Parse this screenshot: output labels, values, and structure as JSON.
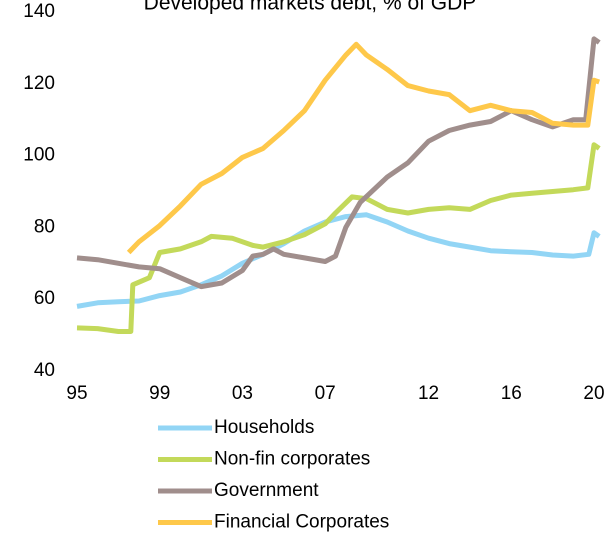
{
  "chart_data": {
    "type": "line",
    "title": "Developed markets debt, % of GDP",
    "xlim": [
      1995,
      2020.25
    ],
    "xticks": [
      {
        "value": 1995,
        "label": "95"
      },
      {
        "value": 1999,
        "label": "99"
      },
      {
        "value": 2003,
        "label": "03"
      },
      {
        "value": 2007,
        "label": "07"
      },
      {
        "value": 2012,
        "label": "12"
      },
      {
        "value": 2016,
        "label": "16"
      },
      {
        "value": 2020,
        "label": "20"
      }
    ],
    "ylim": [
      40,
      140
    ],
    "yticks": [
      40,
      60,
      80,
      100,
      120,
      140
    ],
    "grid": false,
    "series": [
      {
        "name": "Households",
        "color": "#92d5f5",
        "x": [
          1995,
          1996,
          1997,
          1998,
          1999,
          2000,
          2001,
          2002,
          2003,
          2004,
          2005,
          2006,
          2007,
          2008,
          2009,
          2010,
          2011,
          2012,
          2013,
          2014,
          2015,
          2016,
          2017,
          2018,
          2019,
          2019.75,
          2020,
          2020.25
        ],
        "values": [
          58,
          59,
          59.3,
          59.5,
          61,
          62,
          64,
          66.5,
          70,
          72.5,
          75.5,
          79,
          81.5,
          83,
          83.5,
          81.5,
          79,
          77,
          75.5,
          74.5,
          73.5,
          73.2,
          73,
          72.3,
          72,
          72.5,
          78.5,
          77.5
        ]
      },
      {
        "name": "Non-fin corporates",
        "color": "#c3d95a",
        "x": [
          1995,
          1996,
          1997,
          1997.6,
          1997.7,
          1998.5,
          1999,
          2000,
          2001,
          2001.5,
          2002.5,
          2003.5,
          2004,
          2005,
          2006,
          2007,
          2007.5,
          2008.3,
          2009,
          2010,
          2011,
          2012,
          2013,
          2014,
          2015,
          2016,
          2017,
          2018,
          2019,
          2019.7,
          2020,
          2020.25
        ],
        "values": [
          52,
          51.8,
          51,
          51,
          64,
          66,
          73,
          74,
          76,
          77.5,
          77,
          75,
          74.5,
          76,
          78,
          81,
          84,
          88.5,
          88,
          85,
          84,
          85,
          85.5,
          85,
          87.5,
          89,
          89.5,
          90,
          90.5,
          91,
          103,
          102
        ]
      },
      {
        "name": "Government",
        "color": "#a08e8c",
        "x": [
          1995,
          1996,
          1997,
          1998,
          1999,
          2000,
          2001,
          2002,
          2003,
          2003.5,
          2004,
          2004.5,
          2005,
          2006,
          2007,
          2007.5,
          2008,
          2008.7,
          2010,
          2011,
          2012,
          2013,
          2014,
          2015,
          2016,
          2017,
          2018,
          2019,
          2019.6,
          2020,
          2020.25
        ],
        "values": [
          71.5,
          71,
          70,
          69,
          68.5,
          66,
          63.5,
          64.5,
          68,
          72,
          72.5,
          74,
          72.5,
          71.5,
          70.5,
          72,
          80,
          87,
          94,
          98,
          104,
          107,
          108.5,
          109.5,
          112.5,
          110,
          108,
          110,
          110,
          132.5,
          131.5
        ]
      },
      {
        "name": "Financial Corporates",
        "color": "#fec84a",
        "x": [
          1997.5,
          1998,
          1999,
          2000,
          2001,
          2002,
          2003,
          2004,
          2005,
          2006,
          2007,
          2008,
          2008.5,
          2009,
          2010,
          2011,
          2012,
          2013,
          2014,
          2015,
          2016,
          2017,
          2018,
          2019,
          2019.7,
          2020,
          2020.25
        ],
        "values": [
          73,
          76,
          80.5,
          86,
          92,
          95,
          99.5,
          102,
          107,
          112.5,
          121,
          128,
          131,
          128,
          124,
          119.5,
          118,
          117,
          112.5,
          114,
          112.5,
          112,
          109,
          108.5,
          108.5,
          121,
          120.5
        ]
      }
    ]
  }
}
